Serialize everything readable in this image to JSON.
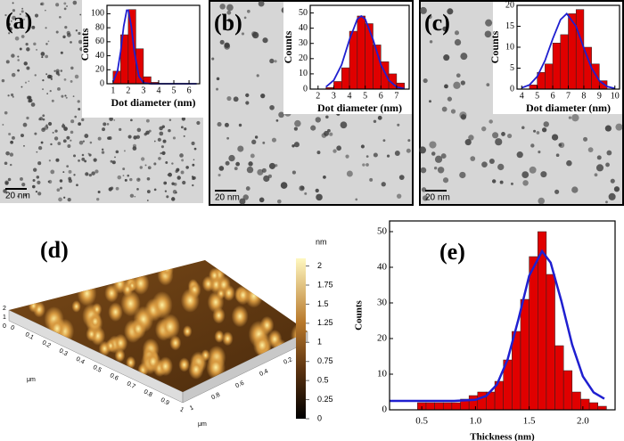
{
  "chart_data": [
    {
      "type": "histogram",
      "panel_label": "(a)",
      "scale_bar": "20 nm",
      "xlabel": "Dot diameter (nm)",
      "ylabel": "Counts",
      "bins": [
        1,
        1.5,
        2,
        2.5,
        3,
        3.5,
        4
      ],
      "values": [
        18,
        70,
        106,
        50,
        10,
        2
      ],
      "color": "#e00000",
      "fit": {
        "color": "#1f1fd0",
        "x": [
          1.0,
          1.3,
          1.5,
          1.7,
          1.9,
          2.0,
          2.2,
          2.4,
          2.7,
          3.0,
          3.5,
          4.0,
          5.0,
          6.5
        ],
        "y": [
          2.7,
          19,
          46,
          82,
          105,
          105,
          82,
          46,
          10.6,
          1.2,
          0,
          0,
          0,
          0
        ]
      },
      "xlim": [
        0.6,
        6.7
      ],
      "xticks": [
        1,
        2,
        3,
        4,
        5,
        6
      ],
      "ylim": [
        0,
        112
      ],
      "yticks": [
        0,
        20,
        40,
        60,
        80,
        100
      ]
    },
    {
      "type": "histogram",
      "panel_label": "(b)",
      "scale_bar": "20 nm",
      "xlabel": "Dot diameter (nm)",
      "ylabel": "Counts",
      "bins": [
        2.5,
        3,
        3.5,
        4,
        4.5,
        5,
        5.5,
        6,
        6.5,
        7,
        7.5
      ],
      "values": [
        1,
        5,
        14,
        38,
        48,
        43,
        29,
        18,
        10,
        4
      ],
      "color": "#e00000",
      "fit": {
        "color": "#1f1fd0",
        "x": [
          2.5,
          3,
          3.5,
          4,
          4.5,
          4.75,
          5,
          5.5,
          6,
          6.5,
          7,
          7.5
        ],
        "y": [
          1.4,
          5.8,
          16,
          32.5,
          46,
          48,
          46,
          32.5,
          16,
          5.8,
          1.4,
          0.2
        ]
      },
      "xlim": [
        1.5,
        7.8
      ],
      "xticks": [
        2,
        3,
        4,
        5,
        6,
        7
      ],
      "ylim": [
        0,
        55
      ],
      "yticks": [
        0,
        10,
        20,
        30,
        40,
        50
      ]
    },
    {
      "type": "histogram",
      "panel_label": "(c)",
      "scale_bar": "20 nm",
      "xlabel": "Dot diameter (nm)",
      "ylabel": "Counts",
      "bins": [
        4.5,
        5,
        5.5,
        6,
        6.5,
        7,
        7.5,
        8,
        8.5,
        9,
        9.5
      ],
      "values": [
        1,
        4,
        6,
        11,
        13,
        18,
        19,
        10,
        6,
        2
      ],
      "color": "#e00000",
      "fit": {
        "color": "#1f1fd0",
        "x": [
          4,
          4.5,
          5,
          5.5,
          6,
          6.5,
          6.9,
          7.5,
          8,
          8.5,
          9,
          9.5,
          10
        ],
        "y": [
          0.3,
          1.0,
          3.0,
          6.8,
          12,
          16.6,
          18,
          15,
          9.8,
          5,
          2,
          0.6,
          0.15
        ]
      },
      "xlim": [
        3.7,
        10.3
      ],
      "xticks": [
        4,
        5,
        6,
        7,
        8,
        9,
        10
      ],
      "ylim": [
        0,
        20
      ],
      "yticks": [
        0,
        5,
        10,
        15,
        20
      ]
    },
    {
      "type": "surface",
      "panel_label": "(d)",
      "axis_label": "μm",
      "xticks": [
        0,
        0.1,
        0.2,
        0.3,
        0.4,
        0.5,
        0.6,
        0.7,
        0.8,
        0.9,
        1
      ],
      "yticks": [
        0.2,
        0.4,
        0.6,
        0.8,
        1
      ],
      "zticks": [
        0,
        1,
        2
      ],
      "colorbar": {
        "unit": "nm",
        "lim": [
          0,
          2.1
        ],
        "ticks": [
          0,
          0.25,
          0.5,
          0.75,
          1,
          1.25,
          1.5,
          1.75,
          2
        ]
      }
    },
    {
      "type": "histogram",
      "panel_label": "(e)",
      "xlabel": "Thickness (nm)",
      "ylabel": "Counts",
      "bins": [
        0.46,
        0.54,
        0.62,
        0.7,
        0.78,
        0.86,
        0.94,
        1.02,
        1.1,
        1.18,
        1.26,
        1.34,
        1.42,
        1.5,
        1.58,
        1.66,
        1.74,
        1.82,
        1.9,
        1.98,
        2.06,
        2.14,
        2.22
      ],
      "values": [
        2,
        2,
        2,
        2,
        2,
        3,
        4,
        5,
        5,
        8,
        14,
        22,
        31,
        43,
        50,
        38,
        18,
        11,
        5,
        3,
        2,
        1
      ],
      "color": "#e00000",
      "fit": {
        "color": "#1f1fd0",
        "x": [
          0.2,
          0.8,
          1.0,
          1.1,
          1.2,
          1.3,
          1.4,
          1.5,
          1.62,
          1.7,
          1.8,
          1.9,
          2.0,
          2.1,
          2.2
        ],
        "y": [
          2.5,
          2.5,
          2.8,
          3.9,
          7.1,
          14.2,
          25.4,
          37.6,
          44.5,
          41.3,
          30.5,
          18.3,
          9.4,
          4.9,
          3.1
        ]
      },
      "xlim": [
        0.2,
        2.3
      ],
      "xticks": [
        0.5,
        {
          "value": 1,
          "label": "1.0"
        },
        1.5,
        {
          "value": 2,
          "label": "2.0"
        }
      ],
      "ylim": [
        0,
        53
      ],
      "yticks": [
        0,
        10,
        20,
        30,
        40,
        50
      ]
    }
  ]
}
